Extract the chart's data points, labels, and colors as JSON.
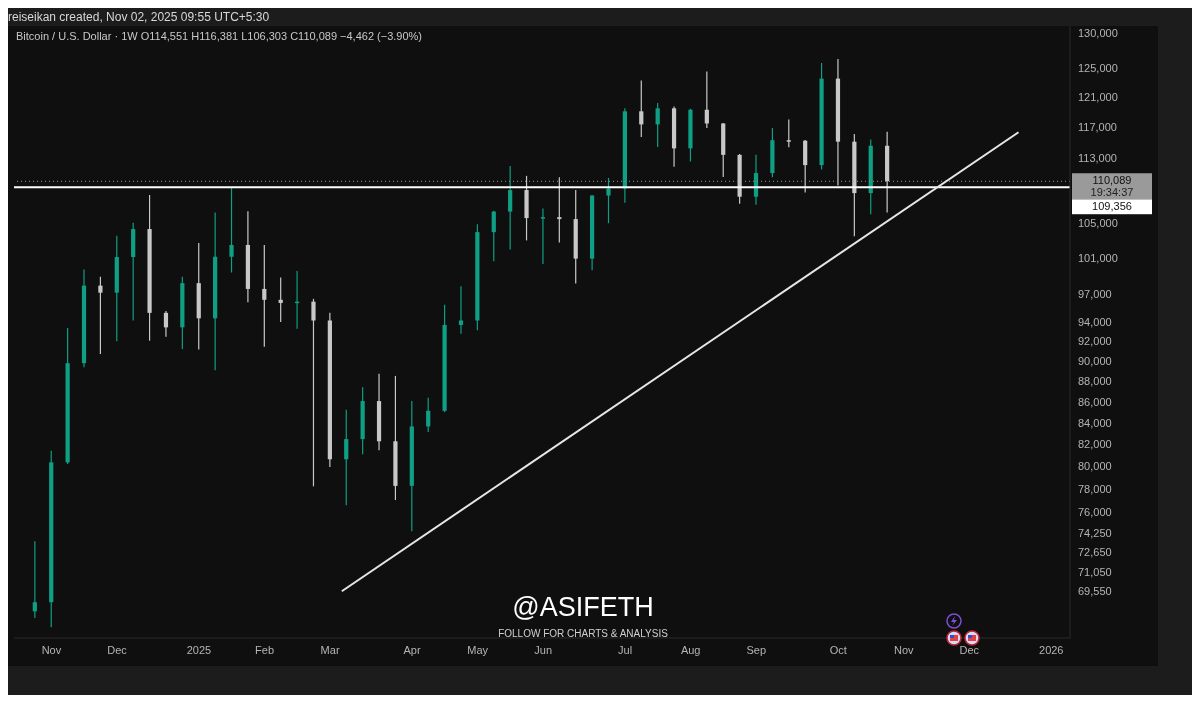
{
  "chart_data": {
    "type": "candlestick",
    "title": "Bitcoin / U.S. Dollar · 1W  O114,551  H116,381  L106,303  C110,089  −4,462 (−3.90%)",
    "annotations": [
      "reiseikan created, Nov 02, 2025 09:55 UTC+5:30",
      "@ASIFETH",
      "FOLLOW FOR CHARTS & ANALYSIS",
      "19:34:37"
    ],
    "x": [
      "2024-10-28",
      "2024-11-04",
      "2024-11-11",
      "2024-11-18",
      "2024-11-25",
      "2024-12-02",
      "2024-12-09",
      "2024-12-16",
      "2024-12-23",
      "2024-12-30",
      "2025-01-06",
      "2025-01-13",
      "2025-01-20",
      "2025-01-27",
      "2025-02-03",
      "2025-02-10",
      "2025-02-17",
      "2025-02-24",
      "2025-03-03",
      "2025-03-10",
      "2025-03-17",
      "2025-03-24",
      "2025-03-31",
      "2025-04-07",
      "2025-04-14",
      "2025-04-21",
      "2025-04-28",
      "2025-05-05",
      "2025-05-12",
      "2025-05-19",
      "2025-05-26",
      "2025-06-02",
      "2025-06-09",
      "2025-06-16",
      "2025-06-23",
      "2025-06-30",
      "2025-07-07",
      "2025-07-14",
      "2025-07-21",
      "2025-07-28",
      "2025-08-04",
      "2025-08-11",
      "2025-08-18",
      "2025-08-25",
      "2025-09-01",
      "2025-09-08",
      "2025-09-15",
      "2025-09-22",
      "2025-09-29",
      "2025-10-06",
      "2025-10-13",
      "2025-10-20",
      "2025-10-27"
    ],
    "ohlc": [
      [
        68000,
        73550,
        67500,
        68700
      ],
      [
        68700,
        81400,
        66800,
        80350
      ],
      [
        80350,
        93410,
        80200,
        89790
      ],
      [
        89790,
        99730,
        89390,
        97940
      ],
      [
        97940,
        98920,
        90720,
        97170
      ],
      [
        97170,
        103580,
        92020,
        101130
      ],
      [
        101130,
        105080,
        94190,
        104350
      ],
      [
        104350,
        108410,
        92080,
        95000
      ],
      [
        95000,
        95200,
        92480,
        93470
      ],
      [
        93470,
        98920,
        91240,
        98210
      ],
      [
        98210,
        102720,
        91180,
        94420
      ],
      [
        94420,
        106300,
        89090,
        101160
      ],
      [
        101160,
        109356,
        99390,
        102510
      ],
      [
        102510,
        106460,
        96130,
        97580
      ],
      [
        97580,
        102510,
        91460,
        96400
      ],
      [
        96400,
        98850,
        94030,
        96060
      ],
      [
        96060,
        99550,
        93320,
        96200
      ],
      [
        96200,
        96500,
        78220,
        94190
      ],
      [
        94190,
        95000,
        79940,
        80630
      ],
      [
        80630,
        85220,
        76590,
        82470
      ],
      [
        82470,
        87400,
        81090,
        86060
      ],
      [
        86060,
        88730,
        81440,
        82270
      ],
      [
        82270,
        88520,
        77030,
        78260
      ],
      [
        78260,
        86060,
        74390,
        83650
      ],
      [
        83650,
        86370,
        83140,
        85130
      ],
      [
        85130,
        95870,
        85000,
        93720
      ],
      [
        93720,
        97880,
        92790,
        94190
      ],
      [
        94190,
        104900,
        93170,
        103990
      ],
      [
        103990,
        106500,
        100640,
        106410
      ],
      [
        106410,
        111990,
        101990,
        109010
      ],
      [
        109010,
        110760,
        103030,
        105640
      ],
      [
        105640,
        106790,
        100340,
        105750
      ],
      [
        105750,
        110570,
        102780,
        105520
      ],
      [
        105520,
        109010,
        98180,
        100950
      ],
      [
        100950,
        108400,
        99640,
        108340
      ],
      [
        108340,
        110500,
        105030,
        109200
      ],
      [
        109200,
        119460,
        107460,
        119060
      ],
      [
        119060,
        123250,
        115680,
        117330
      ],
      [
        117330,
        120190,
        114380,
        119460
      ],
      [
        119460,
        119700,
        111880,
        114220
      ],
      [
        114220,
        119400,
        112550,
        119270
      ],
      [
        119270,
        124500,
        116850,
        117450
      ],
      [
        117450,
        117500,
        110620,
        113390
      ],
      [
        113390,
        113500,
        107350,
        108200
      ],
      [
        108200,
        113420,
        107240,
        111100
      ],
      [
        111100,
        116850,
        110570,
        115270
      ],
      [
        115270,
        117970,
        114370,
        115200
      ],
      [
        115200,
        115300,
        108720,
        112100
      ],
      [
        112100,
        125680,
        111550,
        123500
      ],
      [
        123500,
        126240,
        109570,
        115080
      ],
      [
        115080,
        116060,
        103510,
        108640
      ],
      [
        108640,
        115350,
        106080,
        114551
      ],
      [
        114551,
        116381,
        106303,
        110089
      ]
    ],
    "colors": [
      "#0e9f84",
      "#0e9f84",
      "#0e9f84",
      "#0e9f84",
      "#c8c8c8",
      "#0e9f84",
      "#0e9f84",
      "#c8c8c8",
      "#c8c8c8",
      "#0e9f84",
      "#c8c8c8",
      "#0e9f84",
      "#0e9f84",
      "#c8c8c8",
      "#c8c8c8",
      "#c8c8c8",
      "#0e9f84",
      "#c8c8c8",
      "#c8c8c8",
      "#0e9f84",
      "#0e9f84",
      "#c8c8c8",
      "#c8c8c8",
      "#0e9f84",
      "#0e9f84",
      "#0e9f84",
      "#0e9f84",
      "#0e9f84",
      "#0e9f84",
      "#0e9f84",
      "#c8c8c8",
      "#0e9f84",
      "#c8c8c8",
      "#c8c8c8",
      "#0e9f84",
      "#0e9f84",
      "#0e9f84",
      "#c8c8c8",
      "#0e9f84",
      "#c8c8c8",
      "#0e9f84",
      "#c8c8c8",
      "#c8c8c8",
      "#c8c8c8",
      "#0e9f84",
      "#0e9f84",
      "#c8c8c8",
      "#c8c8c8",
      "#0e9f84",
      "#c8c8c8",
      "#c8c8c8",
      "#0e9f84",
      "#c8c8c8"
    ],
    "series": [
      {
        "type": "line",
        "color": "#e6e6e6",
        "x": [
          "2025-03-08",
          "2025-12-22"
        ],
        "values": [
          69550,
          116300
        ]
      }
    ],
    "ref_lines": [
      {
        "axis": "y",
        "value": 109356,
        "label": "109,356",
        "color": "#ffffff",
        "line_style": "solid"
      },
      {
        "axis": "y",
        "value": 110089,
        "label": "110,089",
        "color": "#9a9a9a",
        "line_style": "dotted"
      }
    ],
    "xlim": [
      "2024-10-19",
      "2026-01-13"
    ],
    "xticks": [
      {
        "value": "2024-11-04",
        "label": "Nov"
      },
      {
        "value": "2024-12-02",
        "label": "Dec"
      },
      {
        "value": "2025-01-06",
        "label": "2025"
      },
      {
        "value": "2025-02-03",
        "label": "Feb"
      },
      {
        "value": "2025-03-03",
        "label": "Mar"
      },
      {
        "value": "2025-04-07",
        "label": "Apr"
      },
      {
        "value": "2025-05-05",
        "label": "May"
      },
      {
        "value": "2025-06-02",
        "label": "Jun"
      },
      {
        "value": "2025-07-07",
        "label": "Jul"
      },
      {
        "value": "2025-08-04",
        "label": "Aug"
      },
      {
        "value": "2025-09-01",
        "label": "Sep"
      },
      {
        "value": "2025-10-06",
        "label": "Oct"
      },
      {
        "value": "2025-11-03",
        "label": "Nov"
      },
      {
        "value": "2025-12-01",
        "label": "Dec"
      },
      {
        "value": "2026-01-05",
        "label": "2026"
      }
    ],
    "log": true,
    "ylim": [
      66000,
      131000
    ],
    "yticks": [
      {
        "value": 69550,
        "label": "69,550"
      },
      {
        "value": 71050,
        "label": "71,050"
      },
      {
        "value": 72650,
        "label": "72,650"
      },
      {
        "value": 74250,
        "label": "74,250"
      },
      {
        "value": 76000,
        "label": "76,000"
      },
      {
        "value": 78000,
        "label": "78,000"
      },
      {
        "value": 80000,
        "label": "80,000"
      },
      {
        "value": 82000,
        "label": "82,000"
      },
      {
        "value": 84000,
        "label": "84,000"
      },
      {
        "value": 86000,
        "label": "86,000"
      },
      {
        "value": 88000,
        "label": "88,000"
      },
      {
        "value": 90000,
        "label": "90,000"
      },
      {
        "value": 92000,
        "label": "92,000"
      },
      {
        "value": 94000,
        "label": "94,000"
      },
      {
        "value": 97000,
        "label": "97,000"
      },
      {
        "value": 101000,
        "label": "101,000"
      },
      {
        "value": 105000,
        "label": "105,000"
      },
      {
        "value": 113000,
        "label": "113,000"
      },
      {
        "value": 117000,
        "label": "117,000"
      },
      {
        "value": 121000,
        "label": "121,000"
      },
      {
        "value": 125000,
        "label": "125,000"
      },
      {
        "value": 130000,
        "label": "130,000"
      }
    ]
  }
}
